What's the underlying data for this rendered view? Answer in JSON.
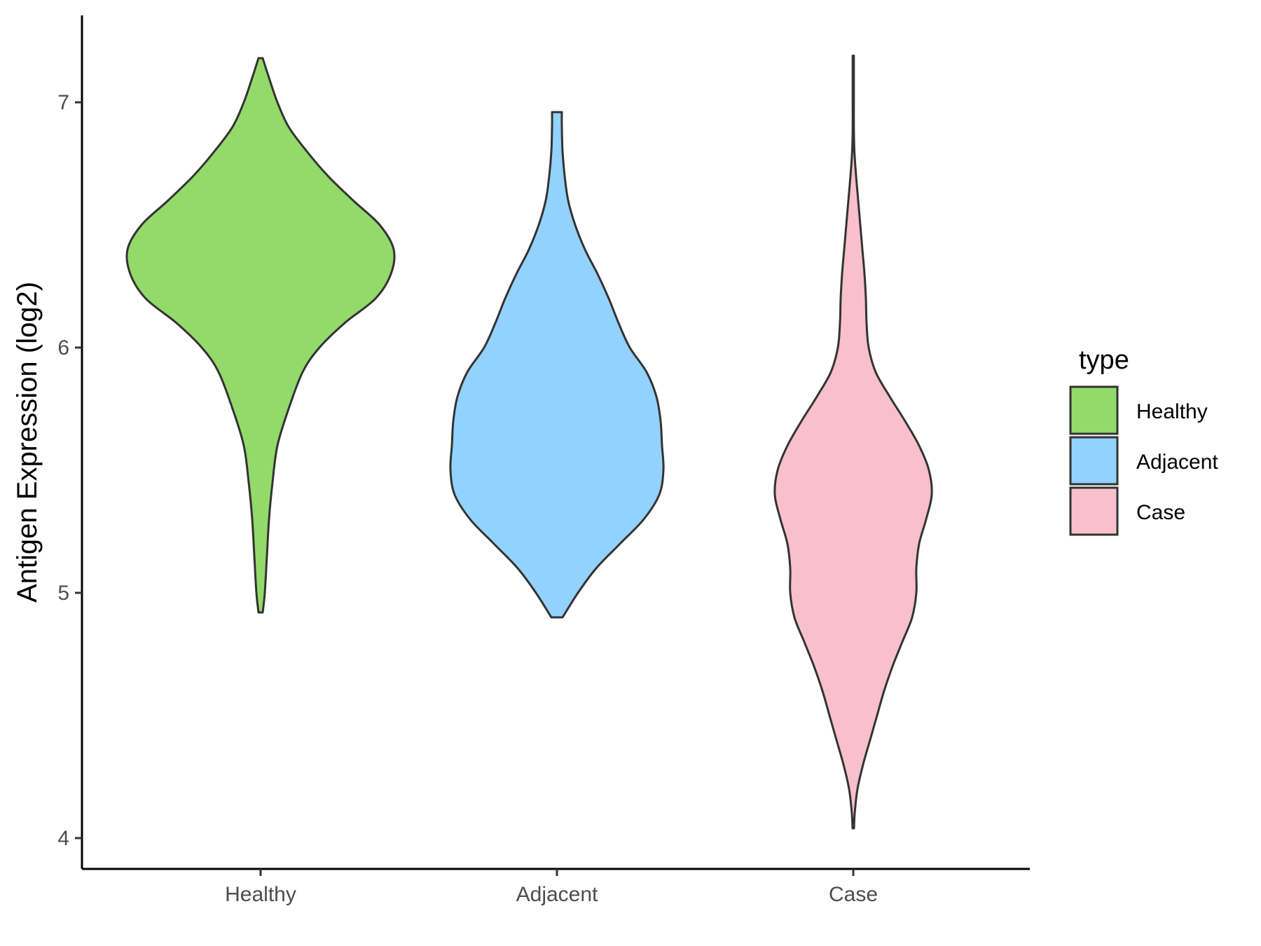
{
  "chart_data": {
    "type": "violin",
    "ylabel": "Antigen Expression (log2)",
    "xlabel": "",
    "categories": [
      "Healthy",
      "Adjacent",
      "Case"
    ],
    "ylim": [
      3.9,
      7.35
    ],
    "yticks": [
      "4",
      "5",
      "6",
      "7"
    ],
    "grid": false,
    "legend": {
      "title": "type",
      "position": "right",
      "entries": [
        "Healthy",
        "Adjacent",
        "Case"
      ]
    },
    "colors": {
      "Healthy": "#93DA6A",
      "Adjacent": "#92D2FD",
      "Case": "#F7C0CB",
      "outline": "#333333"
    },
    "series": [
      {
        "category": "Healthy",
        "min": 4.92,
        "max": 7.18,
        "density_profile": [
          [
            4.92,
            0.015
          ],
          [
            5.0,
            0.03
          ],
          [
            5.15,
            0.045
          ],
          [
            5.3,
            0.06
          ],
          [
            5.45,
            0.085
          ],
          [
            5.6,
            0.12
          ],
          [
            5.75,
            0.2
          ],
          [
            5.9,
            0.3
          ],
          [
            6.0,
            0.42
          ],
          [
            6.1,
            0.6
          ],
          [
            6.2,
            0.82
          ],
          [
            6.3,
            0.93
          ],
          [
            6.4,
            0.95
          ],
          [
            6.5,
            0.85
          ],
          [
            6.6,
            0.66
          ],
          [
            6.7,
            0.48
          ],
          [
            6.8,
            0.33
          ],
          [
            6.9,
            0.2
          ],
          [
            7.0,
            0.12
          ],
          [
            7.1,
            0.06
          ],
          [
            7.18,
            0.015
          ]
        ]
      },
      {
        "category": "Adjacent",
        "min": 4.9,
        "max": 6.96,
        "density_profile": [
          [
            4.9,
            0.04
          ],
          [
            5.0,
            0.15
          ],
          [
            5.1,
            0.28
          ],
          [
            5.2,
            0.45
          ],
          [
            5.3,
            0.62
          ],
          [
            5.4,
            0.73
          ],
          [
            5.5,
            0.76
          ],
          [
            5.6,
            0.75
          ],
          [
            5.7,
            0.74
          ],
          [
            5.8,
            0.71
          ],
          [
            5.9,
            0.64
          ],
          [
            6.0,
            0.52
          ],
          [
            6.1,
            0.44
          ],
          [
            6.2,
            0.37
          ],
          [
            6.3,
            0.29
          ],
          [
            6.4,
            0.2
          ],
          [
            6.5,
            0.13
          ],
          [
            6.6,
            0.08
          ],
          [
            6.7,
            0.055
          ],
          [
            6.8,
            0.04
          ],
          [
            6.9,
            0.035
          ],
          [
            6.96,
            0.035
          ]
        ]
      },
      {
        "category": "Case",
        "min": 4.04,
        "max": 7.19,
        "density_profile": [
          [
            4.04,
            0.005
          ],
          [
            4.1,
            0.01
          ],
          [
            4.2,
            0.03
          ],
          [
            4.3,
            0.07
          ],
          [
            4.4,
            0.12
          ],
          [
            4.5,
            0.17
          ],
          [
            4.6,
            0.22
          ],
          [
            4.7,
            0.28
          ],
          [
            4.8,
            0.35
          ],
          [
            4.9,
            0.42
          ],
          [
            5.0,
            0.45
          ],
          [
            5.1,
            0.45
          ],
          [
            5.2,
            0.47
          ],
          [
            5.3,
            0.52
          ],
          [
            5.4,
            0.56
          ],
          [
            5.5,
            0.54
          ],
          [
            5.6,
            0.47
          ],
          [
            5.7,
            0.37
          ],
          [
            5.8,
            0.26
          ],
          [
            5.9,
            0.16
          ],
          [
            6.0,
            0.11
          ],
          [
            6.1,
            0.095
          ],
          [
            6.2,
            0.09
          ],
          [
            6.3,
            0.08
          ],
          [
            6.4,
            0.065
          ],
          [
            6.5,
            0.05
          ],
          [
            6.6,
            0.035
          ],
          [
            6.7,
            0.02
          ],
          [
            6.8,
            0.008
          ],
          [
            6.9,
            0.004
          ],
          [
            7.0,
            0.004
          ],
          [
            7.1,
            0.004
          ],
          [
            7.19,
            0.004
          ]
        ]
      }
    ]
  }
}
